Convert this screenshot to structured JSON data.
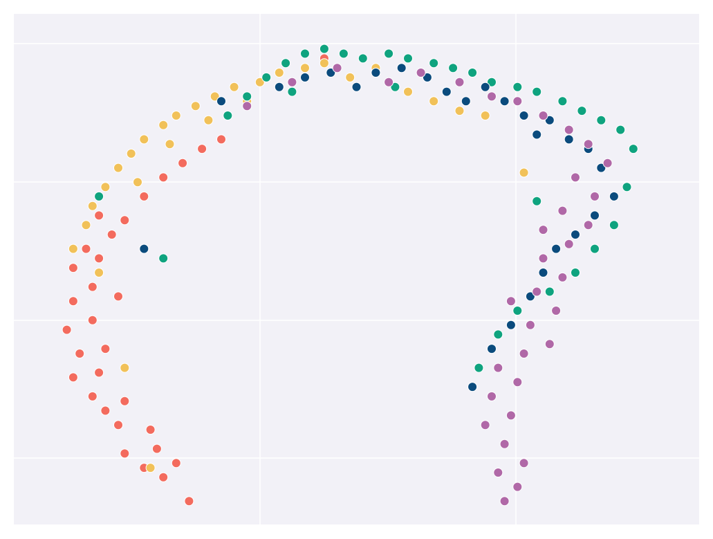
{
  "chart_data": {
    "type": "scatter",
    "title": "",
    "xlabel": "",
    "ylabel": "",
    "grid": true,
    "legend": "none",
    "background_color": "#f2f1f7",
    "grid_color": "#ffffff",
    "marker_edge_color": "#ffffff",
    "series": [
      {
        "color": "#f36b5e",
        "points": [
          [
            0.24,
            0.02
          ],
          [
            0.2,
            0.07
          ],
          [
            0.22,
            0.1
          ],
          [
            0.17,
            0.09
          ],
          [
            0.19,
            0.13
          ],
          [
            0.14,
            0.12
          ],
          [
            0.18,
            0.17
          ],
          [
            0.13,
            0.18
          ],
          [
            0.11,
            0.21
          ],
          [
            0.14,
            0.23
          ],
          [
            0.09,
            0.24
          ],
          [
            0.06,
            0.28
          ],
          [
            0.1,
            0.29
          ],
          [
            0.07,
            0.33
          ],
          [
            0.11,
            0.34
          ],
          [
            0.05,
            0.38
          ],
          [
            0.09,
            0.4
          ],
          [
            0.06,
            0.44
          ],
          [
            0.09,
            0.47
          ],
          [
            0.06,
            0.51
          ],
          [
            0.08,
            0.55
          ],
          [
            0.1,
            0.53
          ],
          [
            0.12,
            0.58
          ],
          [
            0.14,
            0.61
          ],
          [
            0.17,
            0.66
          ],
          [
            0.2,
            0.7
          ],
          [
            0.23,
            0.73
          ],
          [
            0.26,
            0.76
          ],
          [
            0.29,
            0.78
          ],
          [
            0.13,
            0.45
          ],
          [
            0.1,
            0.62
          ],
          [
            0.45,
            0.95
          ]
        ]
      },
      {
        "color": "#f1c159",
        "points": [
          [
            0.06,
            0.55
          ],
          [
            0.08,
            0.6
          ],
          [
            0.09,
            0.64
          ],
          [
            0.11,
            0.68
          ],
          [
            0.13,
            0.72
          ],
          [
            0.15,
            0.75
          ],
          [
            0.17,
            0.78
          ],
          [
            0.2,
            0.81
          ],
          [
            0.22,
            0.83
          ],
          [
            0.25,
            0.85
          ],
          [
            0.28,
            0.87
          ],
          [
            0.31,
            0.89
          ],
          [
            0.35,
            0.9
          ],
          [
            0.38,
            0.92
          ],
          [
            0.42,
            0.93
          ],
          [
            0.45,
            0.94
          ],
          [
            0.49,
            0.91
          ],
          [
            0.53,
            0.93
          ],
          [
            0.58,
            0.88
          ],
          [
            0.62,
            0.86
          ],
          [
            0.66,
            0.84
          ],
          [
            0.7,
            0.83
          ],
          [
            0.16,
            0.69
          ],
          [
            0.21,
            0.77
          ],
          [
            0.27,
            0.82
          ],
          [
            0.33,
            0.86
          ],
          [
            0.1,
            0.5
          ],
          [
            0.14,
            0.3
          ],
          [
            0.18,
            0.09
          ],
          [
            0.76,
            0.71
          ]
        ]
      },
      {
        "color": "#0fa37f",
        "points": [
          [
            0.3,
            0.83
          ],
          [
            0.33,
            0.87
          ],
          [
            0.36,
            0.91
          ],
          [
            0.39,
            0.94
          ],
          [
            0.42,
            0.96
          ],
          [
            0.45,
            0.97
          ],
          [
            0.48,
            0.96
          ],
          [
            0.51,
            0.95
          ],
          [
            0.55,
            0.96
          ],
          [
            0.58,
            0.95
          ],
          [
            0.62,
            0.94
          ],
          [
            0.65,
            0.93
          ],
          [
            0.68,
            0.92
          ],
          [
            0.71,
            0.9
          ],
          [
            0.75,
            0.89
          ],
          [
            0.78,
            0.88
          ],
          [
            0.82,
            0.86
          ],
          [
            0.85,
            0.84
          ],
          [
            0.88,
            0.82
          ],
          [
            0.91,
            0.8
          ],
          [
            0.93,
            0.76
          ],
          [
            0.92,
            0.68
          ],
          [
            0.9,
            0.6
          ],
          [
            0.87,
            0.55
          ],
          [
            0.84,
            0.5
          ],
          [
            0.8,
            0.46
          ],
          [
            0.75,
            0.42
          ],
          [
            0.72,
            0.37
          ],
          [
            0.69,
            0.3
          ],
          [
            0.1,
            0.66
          ],
          [
            0.2,
            0.53
          ],
          [
            0.4,
            0.88
          ],
          [
            0.56,
            0.89
          ],
          [
            0.78,
            0.65
          ]
        ]
      },
      {
        "color": "#0b4b7d",
        "points": [
          [
            0.38,
            0.89
          ],
          [
            0.42,
            0.91
          ],
          [
            0.46,
            0.92
          ],
          [
            0.5,
            0.89
          ],
          [
            0.53,
            0.92
          ],
          [
            0.57,
            0.93
          ],
          [
            0.61,
            0.91
          ],
          [
            0.64,
            0.88
          ],
          [
            0.67,
            0.86
          ],
          [
            0.7,
            0.89
          ],
          [
            0.73,
            0.86
          ],
          [
            0.76,
            0.83
          ],
          [
            0.78,
            0.79
          ],
          [
            0.8,
            0.82
          ],
          [
            0.83,
            0.78
          ],
          [
            0.86,
            0.76
          ],
          [
            0.88,
            0.72
          ],
          [
            0.9,
            0.66
          ],
          [
            0.87,
            0.62
          ],
          [
            0.84,
            0.58
          ],
          [
            0.81,
            0.55
          ],
          [
            0.79,
            0.5
          ],
          [
            0.77,
            0.45
          ],
          [
            0.74,
            0.39
          ],
          [
            0.71,
            0.34
          ],
          [
            0.17,
            0.55
          ],
          [
            0.29,
            0.86
          ],
          [
            0.68,
            0.26
          ]
        ]
      },
      {
        "color": "#b068a7",
        "points": [
          [
            0.73,
            0.02
          ],
          [
            0.75,
            0.05
          ],
          [
            0.72,
            0.08
          ],
          [
            0.76,
            0.1
          ],
          [
            0.73,
            0.14
          ],
          [
            0.7,
            0.18
          ],
          [
            0.74,
            0.2
          ],
          [
            0.71,
            0.24
          ],
          [
            0.75,
            0.27
          ],
          [
            0.72,
            0.3
          ],
          [
            0.76,
            0.33
          ],
          [
            0.8,
            0.35
          ],
          [
            0.77,
            0.39
          ],
          [
            0.81,
            0.42
          ],
          [
            0.78,
            0.46
          ],
          [
            0.82,
            0.49
          ],
          [
            0.79,
            0.53
          ],
          [
            0.83,
            0.56
          ],
          [
            0.86,
            0.6
          ],
          [
            0.82,
            0.63
          ],
          [
            0.87,
            0.66
          ],
          [
            0.84,
            0.7
          ],
          [
            0.89,
            0.73
          ],
          [
            0.86,
            0.77
          ],
          [
            0.83,
            0.8
          ],
          [
            0.79,
            0.83
          ],
          [
            0.75,
            0.86
          ],
          [
            0.71,
            0.87
          ],
          [
            0.66,
            0.9
          ],
          [
            0.6,
            0.92
          ],
          [
            0.55,
            0.9
          ],
          [
            0.47,
            0.93
          ],
          [
            0.4,
            0.9
          ],
          [
            0.33,
            0.85
          ],
          [
            0.74,
            0.44
          ],
          [
            0.79,
            0.59
          ]
        ]
      }
    ]
  }
}
